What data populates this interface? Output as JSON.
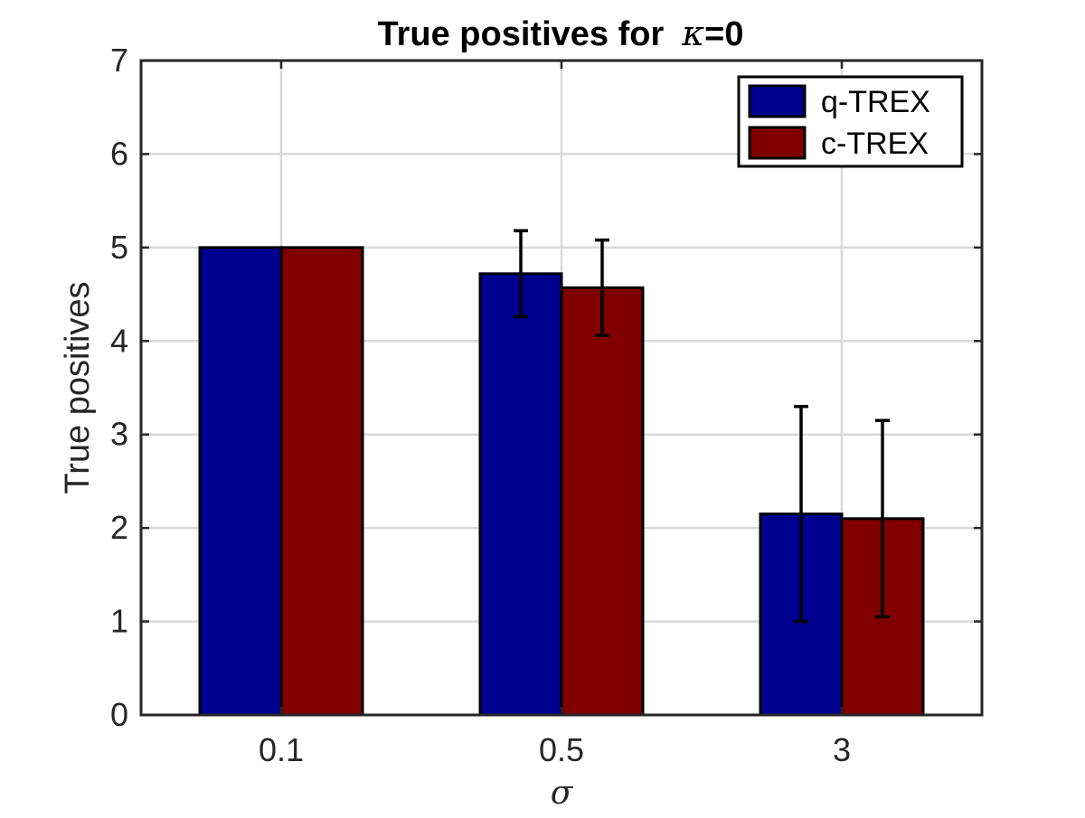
{
  "chart_data": {
    "type": "bar",
    "title": "True positives for",
    "title_symbol": "κ",
    "title_value": "=0",
    "xlabel": "σ",
    "ylabel": "True positives",
    "categories": [
      "0.1",
      "0.5",
      "3"
    ],
    "series": [
      {
        "name": "q-TREX",
        "color": "#000090",
        "values": [
          5.0,
          4.72,
          2.15
        ],
        "errors": [
          0.0,
          0.46,
          1.15
        ]
      },
      {
        "name": "c-TREX",
        "color": "#800000",
        "values": [
          5.0,
          4.57,
          2.1
        ],
        "errors": [
          0.0,
          0.51,
          1.05
        ]
      }
    ],
    "ylim": [
      0,
      7
    ],
    "yticks": [
      "0",
      "1",
      "2",
      "3",
      "4",
      "5",
      "6",
      "7"
    ],
    "grid": true,
    "legend_position": "top-right"
  }
}
